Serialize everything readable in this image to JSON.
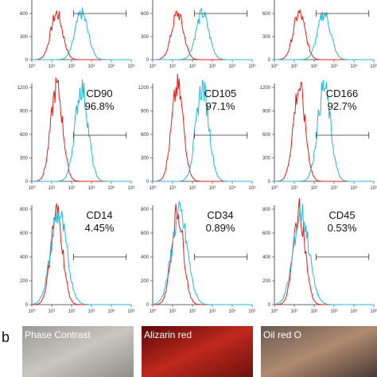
{
  "xticks": [
    "10⁰",
    "10¹",
    "10²",
    "10³",
    "10⁴",
    "10⁵"
  ],
  "rows": [
    {
      "yticks": [
        "600",
        "300",
        "0"
      ]
    },
    {
      "yticks": [
        "1200",
        "900",
        "600",
        "300",
        "0"
      ],
      "panels": [
        {
          "marker": "CD90",
          "percent": "96.8%"
        },
        {
          "marker": "CD105",
          "percent": "97.1%"
        },
        {
          "marker": "CD166",
          "percent": "92.7%"
        }
      ]
    },
    {
      "yticks": [
        "800",
        "600",
        "400",
        "200",
        "0"
      ],
      "panels": [
        {
          "marker": "CD14",
          "percent": "4.45%"
        },
        {
          "marker": "CD34",
          "percent": "0.89%"
        },
        {
          "marker": "CD45",
          "percent": "0.53%"
        }
      ]
    }
  ],
  "photos": {
    "label": "b",
    "images": [
      "Phase Contrast",
      "Alizarin red",
      "Oil red O"
    ]
  }
}
